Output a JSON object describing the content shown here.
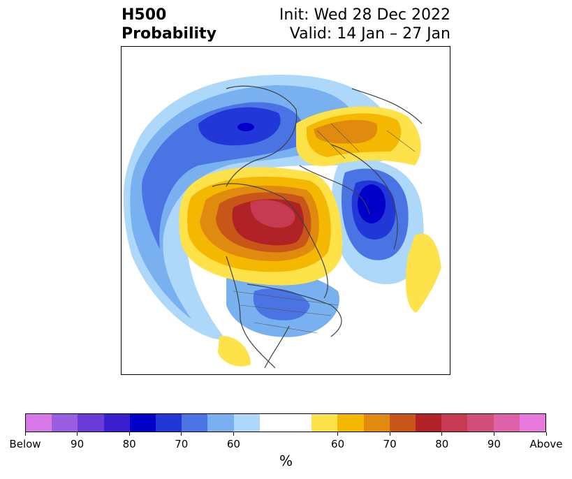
{
  "title": {
    "left_line1": "H500",
    "left_line2": "Probability",
    "right_line1": "Init: Wed 28 Dec 2022",
    "right_line2": "Valid: 14 Jan – 27 Jan"
  },
  "colorbar": {
    "colors": [
      "#d877e8",
      "#9a5ee0",
      "#6a3bd8",
      "#3a1fd0",
      "#0000c8",
      "#2137d8",
      "#4a74e4",
      "#78b0f0",
      "#aed8f9",
      "#ffffff",
      "#ffffff",
      "#fde24a",
      "#f5b800",
      "#e08a10",
      "#c95619",
      "#b02225",
      "#c63a52",
      "#d14e78",
      "#dd62a8",
      "#e778de"
    ],
    "labels": [
      "Below",
      "90",
      "80",
      "70",
      "60",
      "60",
      "70",
      "80",
      "90",
      "Above"
    ],
    "unit": "%"
  },
  "map": {
    "projection": "polar stereographic",
    "field": "H500 probability anomaly"
  }
}
